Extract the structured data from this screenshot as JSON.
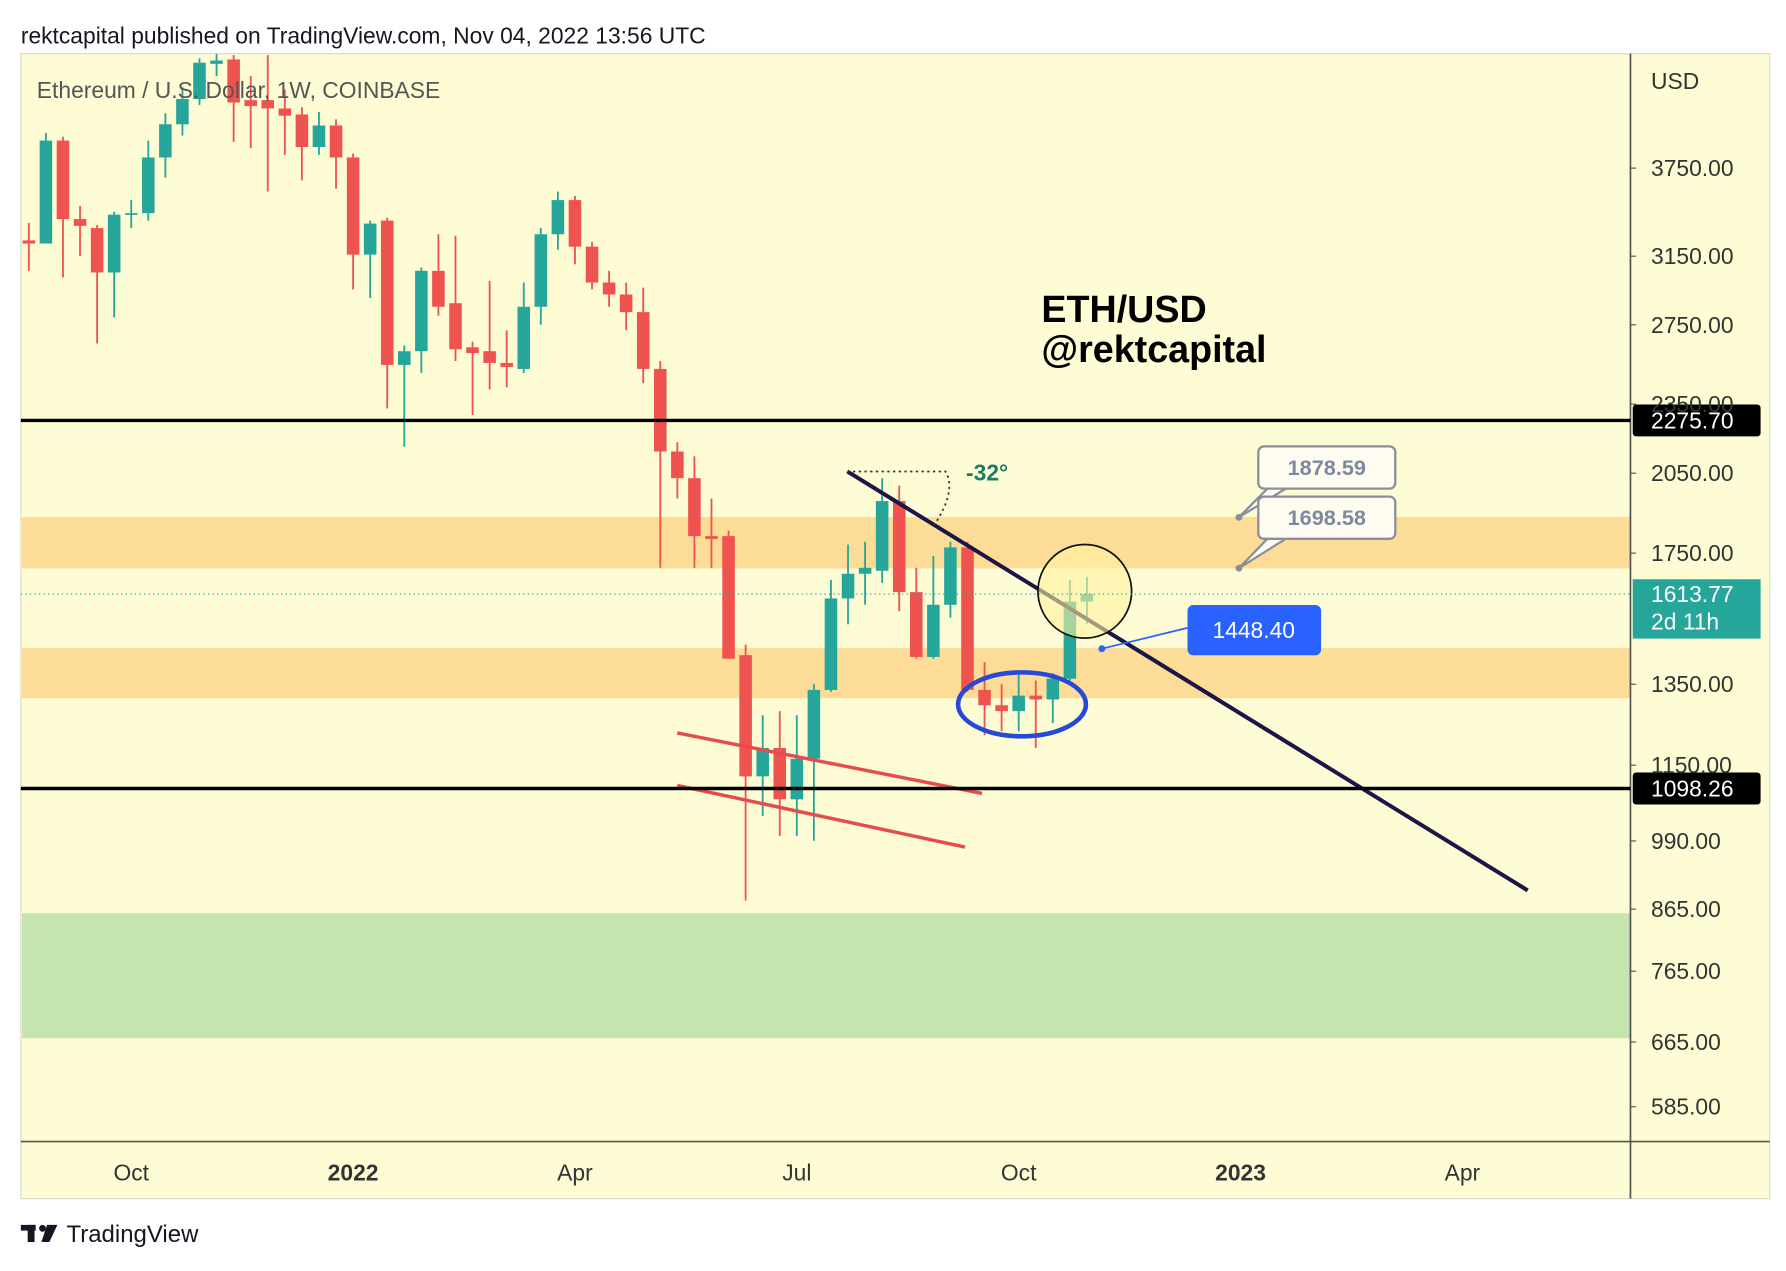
{
  "header": {
    "attribution": "rektcapital published on TradingView.com, Nov 04, 2022 13:56 UTC"
  },
  "footer": {
    "brand": "TradingView"
  },
  "chart_data": {
    "type": "candlestick",
    "title": "Ethereum / U.S. Dollar, 1W, COINBASE",
    "headline": [
      "ETH/USD",
      "@rektcapital"
    ],
    "y_axis_label": "USD",
    "log_scale": true,
    "ylim": [
      546,
      4693
    ],
    "yticks": [
      {
        "value": 3750,
        "label": "3750.00"
      },
      {
        "value": 3150,
        "label": "3150.00"
      },
      {
        "value": 2750,
        "label": "2750.00"
      },
      {
        "value": 2350,
        "label": "2350.00"
      },
      {
        "value": 2050,
        "label": "2050.00"
      },
      {
        "value": 1750,
        "label": "1750.00"
      },
      {
        "value": 1350,
        "label": "1350.00"
      },
      {
        "value": 1150,
        "label": "1150.00"
      },
      {
        "value": 990,
        "label": "990.00"
      },
      {
        "value": 865,
        "label": "865.00"
      },
      {
        "value": 765,
        "label": "765.00"
      },
      {
        "value": 665,
        "label": "665.00"
      },
      {
        "value": 585,
        "label": "585.00"
      }
    ],
    "x_labels": [
      "Oct",
      "2022",
      "Apr",
      "Jul",
      "Oct",
      "2023",
      "Apr"
    ],
    "up_color": "#26a69a",
    "down_color": "#ef5350",
    "series": {
      "open": [
        3250,
        3230,
        3960,
        3390,
        3330,
        3050,
        3420,
        3430,
        3830,
        4090,
        4300,
        4610,
        4650,
        4290,
        4290,
        4220,
        4170,
        3910,
        4080,
        3830,
        3160,
        3380,
        2540,
        2610,
        3060,
        2870,
        2630,
        2610,
        2550,
        2520,
        2850,
        3290,
        3520,
        3210,
        2990,
        2920,
        2820,
        2520,
        2140,
        2030,
        1810,
        1810,
        1430,
        1125,
        1190,
        1075,
        1165,
        1335,
        1600,
        1680,
        1690,
        1940,
        1620,
        1425,
        1580,
        1770,
        1335,
        1295,
        1280,
        1320,
        1310,
        1365,
        1590
      ],
      "high": [
        3365,
        4020,
        3990,
        3480,
        3350,
        3440,
        3520,
        3960,
        4180,
        4400,
        4660,
        4700,
        4690,
        4500,
        4690,
        4380,
        4230,
        4190,
        4130,
        3860,
        3380,
        3400,
        2640,
        3080,
        3290,
        3280,
        2660,
        3000,
        2720,
        2990,
        3330,
        3580,
        3550,
        3240,
        3060,
        2990,
        2960,
        2560,
        2180,
        2120,
        1950,
        1830,
        1460,
        1270,
        1280,
        1270,
        1350,
        1660,
        1780,
        1790,
        2030,
        2000,
        1700,
        1740,
        1790,
        1790,
        1410,
        1350,
        1380,
        1360,
        1380,
        1660,
        1670
      ],
      "low": [
        3060,
        3230,
        3020,
        3150,
        2650,
        2790,
        3330,
        3380,
        3680,
        4000,
        4250,
        4500,
        3950,
        3900,
        3580,
        3850,
        3660,
        3850,
        3600,
        2950,
        2900,
        2330,
        2160,
        2500,
        2800,
        2560,
        2300,
        2420,
        2430,
        2500,
        2750,
        3190,
        3100,
        2950,
        2850,
        2720,
        2450,
        1700,
        1950,
        1700,
        1700,
        1420,
        880,
        1040,
        1000,
        1000,
        990,
        1330,
        1520,
        1580,
        1650,
        1560,
        1420,
        1420,
        1540,
        1330,
        1220,
        1230,
        1230,
        1190,
        1250,
        1360,
        1520
      ],
      "close": [
        3230,
        3960,
        3390,
        3345,
        3050,
        3420,
        3430,
        3830,
        4090,
        4300,
        4620,
        4640,
        4270,
        4240,
        4220,
        4160,
        3910,
        4080,
        3830,
        3160,
        3360,
        2540,
        2610,
        3060,
        2850,
        2620,
        2600,
        2550,
        2530,
        2850,
        3290,
        3520,
        3210,
        2990,
        2920,
        2820,
        2520,
        2140,
        2030,
        1810,
        1800,
        1420,
        1125,
        1190,
        1075,
        1165,
        1335,
        1600,
        1680,
        1700,
        1940,
        1620,
        1425,
        1580,
        1770,
        1335,
        1295,
        1280,
        1320,
        1310,
        1365,
        1590,
        1614
      ]
    },
    "levels": [
      {
        "value": 2275.7,
        "label": "2275.70"
      },
      1098.26
    ],
    "last_price": 1613.77,
    "countdown": "2d 11h",
    "callouts": [
      1878.59,
      1698.58,
      {
        "value": 1448.4,
        "label": "1448.40"
      }
    ],
    "angle_label": "-32°",
    "zones": [
      {
        "low": 1698,
        "high": 1880,
        "color": "#fcdc96"
      },
      {
        "low": 1313,
        "high": 1450,
        "color": "#fcdc96"
      },
      {
        "low": 670,
        "high": 858,
        "color": "#c6e4ae"
      }
    ]
  }
}
